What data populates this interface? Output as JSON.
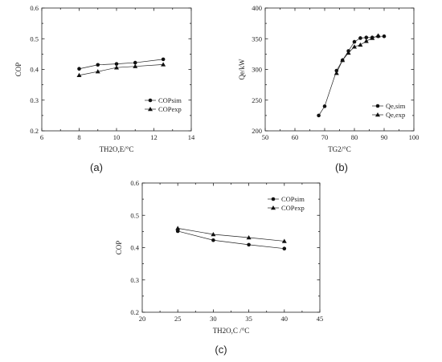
{
  "chart_data": [
    {
      "type": "line",
      "panel": "(a)",
      "xlabel": "TH2O,E/°C",
      "ylabel": "COP",
      "xlim": [
        6,
        14
      ],
      "ylim": [
        0.2,
        0.6
      ],
      "xticks": [
        "6",
        "8",
        "10",
        "12",
        "14"
      ],
      "yticks": [
        "0.2",
        "0.3",
        "0.4",
        "0.5",
        "0.6"
      ],
      "legend_position": "lower-right",
      "series": [
        {
          "name": "COPsim",
          "marker": "circle",
          "x": [
            8,
            9,
            10,
            11,
            12.5
          ],
          "y": [
            0.402,
            0.415,
            0.418,
            0.422,
            0.433
          ]
        },
        {
          "name": "COPexp",
          "marker": "triangle",
          "x": [
            8,
            9,
            10,
            11,
            12.5
          ],
          "y": [
            0.381,
            0.393,
            0.406,
            0.41,
            0.416
          ]
        }
      ]
    },
    {
      "type": "line",
      "panel": "(b)",
      "xlabel": "TG2/°C",
      "ylabel": "Qe/kW",
      "xlim": [
        50,
        100
      ],
      "ylim": [
        200,
        400
      ],
      "xticks": [
        "50",
        "60",
        "70",
        "80",
        "90",
        "100"
      ],
      "yticks": [
        "200",
        "250",
        "300",
        "350",
        "400"
      ],
      "legend_position": "lower-right",
      "series": [
        {
          "name": "Qe,sim",
          "marker": "circle",
          "x": [
            68,
            70,
            74,
            76,
            78,
            80,
            82,
            84,
            86,
            88,
            90
          ],
          "y": [
            225,
            240,
            298,
            315,
            330,
            345,
            351,
            352,
            352,
            354,
            354
          ]
        },
        {
          "name": "Qe,exp",
          "marker": "triangle",
          "x": [
            74,
            76,
            78,
            80,
            82,
            84,
            86,
            88
          ],
          "y": [
            294,
            315,
            327,
            337,
            340,
            346,
            351,
            355
          ]
        }
      ]
    },
    {
      "type": "line",
      "panel": "(c)",
      "xlabel": "TH2O,C /°C",
      "ylabel": "COP",
      "xlim": [
        20,
        45
      ],
      "ylim": [
        0.2,
        0.6
      ],
      "xticks": [
        "20",
        "25",
        "30",
        "35",
        "40",
        "45"
      ],
      "yticks": [
        "0.2",
        "0.3",
        "0.4",
        "0.5",
        "0.6"
      ],
      "legend_position": "top-right",
      "series": [
        {
          "name": "COPsim",
          "marker": "circle",
          "x": [
            25,
            30,
            35,
            40
          ],
          "y": [
            0.451,
            0.423,
            0.409,
            0.397
          ]
        },
        {
          "name": "COPexp",
          "marker": "triangle",
          "x": [
            25,
            30,
            35,
            40
          ],
          "y": [
            0.46,
            0.441,
            0.431,
            0.42
          ]
        }
      ]
    }
  ]
}
